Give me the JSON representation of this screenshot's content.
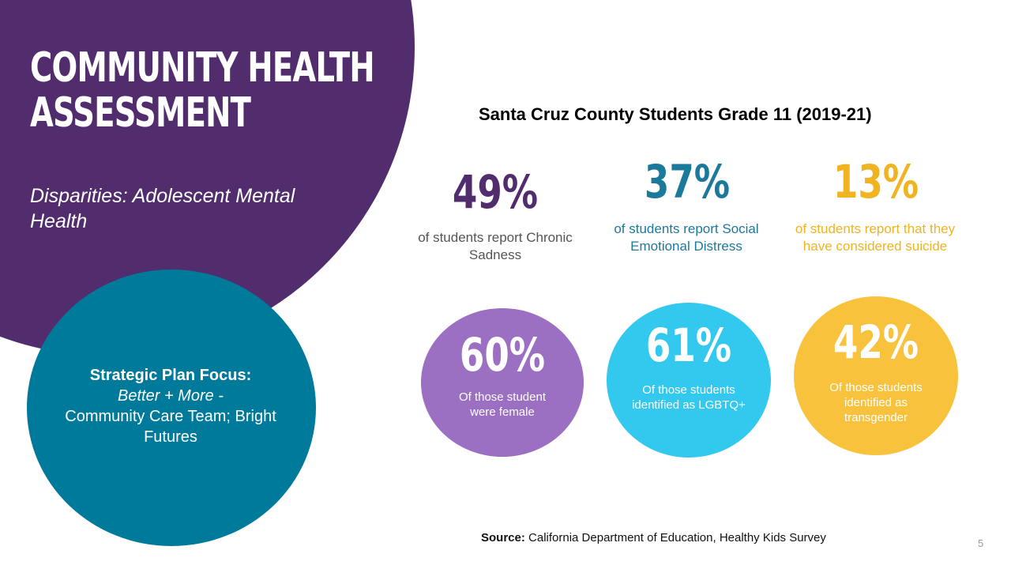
{
  "slide": {
    "title_line1": "COMMUNITY HEALTH",
    "title_line2": "ASSESSMENT",
    "subtitle": "Disparities: Adolescent Mental Health",
    "focus": {
      "title": "Strategic Plan Focus:",
      "italic": "Better + More -",
      "rest": "Community Care Team; Bright Futures"
    },
    "heading": "Santa Cruz County Students Grade 11 (2019-21)",
    "stats": [
      {
        "value": "49%",
        "desc": "of students report Chronic Sadness",
        "color": "#512d6d"
      },
      {
        "value": "37%",
        "desc": "of students report Social Emotional Distress",
        "color": "#1b7a9b"
      },
      {
        "value": "13%",
        "desc": "of students report that they have considered suicide",
        "color": "#f0b321"
      }
    ],
    "bubbles": [
      {
        "value": "60%",
        "desc": "Of those student were female",
        "color": "#9b6fc2"
      },
      {
        "value": "61%",
        "desc": "Of those students identified as LGBTQ+",
        "color": "#33c8ee"
      },
      {
        "value": "42%",
        "desc": "Of those students identified as transgender",
        "color": "#f9c23c"
      }
    ],
    "source_label": "Source:",
    "source_text": "California Department of Education, Healthy Kids Survey",
    "page_number": "5"
  },
  "colors": {
    "purple": "#512d6d",
    "teal": "#007a9a"
  }
}
